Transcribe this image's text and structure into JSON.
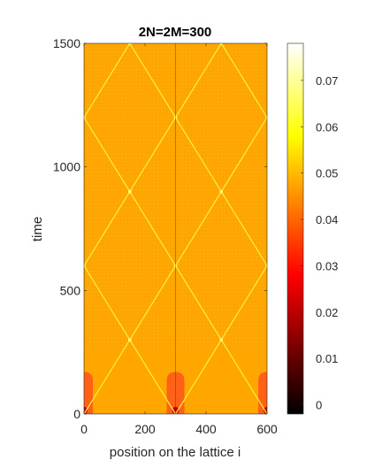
{
  "chart_data": {
    "type": "heatmap",
    "title": "2N=2M=300",
    "xlabel": "position on the lattice i",
    "ylabel": "time",
    "xlim": [
      0,
      600
    ],
    "ylim": [
      0,
      1500
    ],
    "x_ticks": [
      0,
      200,
      400,
      600
    ],
    "y_ticks": [
      0,
      500,
      1000,
      1500
    ],
    "colorbar": {
      "range": [
        -0.002,
        0.078
      ],
      "ticks": [
        0,
        0.01,
        0.02,
        0.03,
        0.04,
        0.05,
        0.06,
        0.07
      ],
      "tick_labels": [
        "0",
        "0.01",
        "0.02",
        "0.03",
        "0.04",
        "0.05",
        "0.06",
        "0.07"
      ],
      "colormap": "hot"
    },
    "background_value": 0.058,
    "background_color": "#ffa600",
    "front_color": "#ffee3a",
    "blob_color": "#ff5a1a",
    "defect_sites": [
      0,
      300,
      600
    ],
    "initial_blob_duration": 170,
    "light_cone": {
      "speed_sites_per_time": 0.5,
      "sources": [
        0,
        300,
        600
      ],
      "reflections": "periodic"
    },
    "front_crossings": [
      {
        "x": 150,
        "y": 300
      },
      {
        "x": 450,
        "y": 300
      },
      {
        "x": 0,
        "y": 600
      },
      {
        "x": 300,
        "y": 600
      },
      {
        "x": 600,
        "y": 600
      },
      {
        "x": 150,
        "y": 900
      },
      {
        "x": 450,
        "y": 900
      },
      {
        "x": 0,
        "y": 1200
      },
      {
        "x": 300,
        "y": 1200
      },
      {
        "x": 600,
        "y": 1200
      },
      {
        "x": 150,
        "y": 1500
      },
      {
        "x": 450,
        "y": 1500
      }
    ]
  }
}
